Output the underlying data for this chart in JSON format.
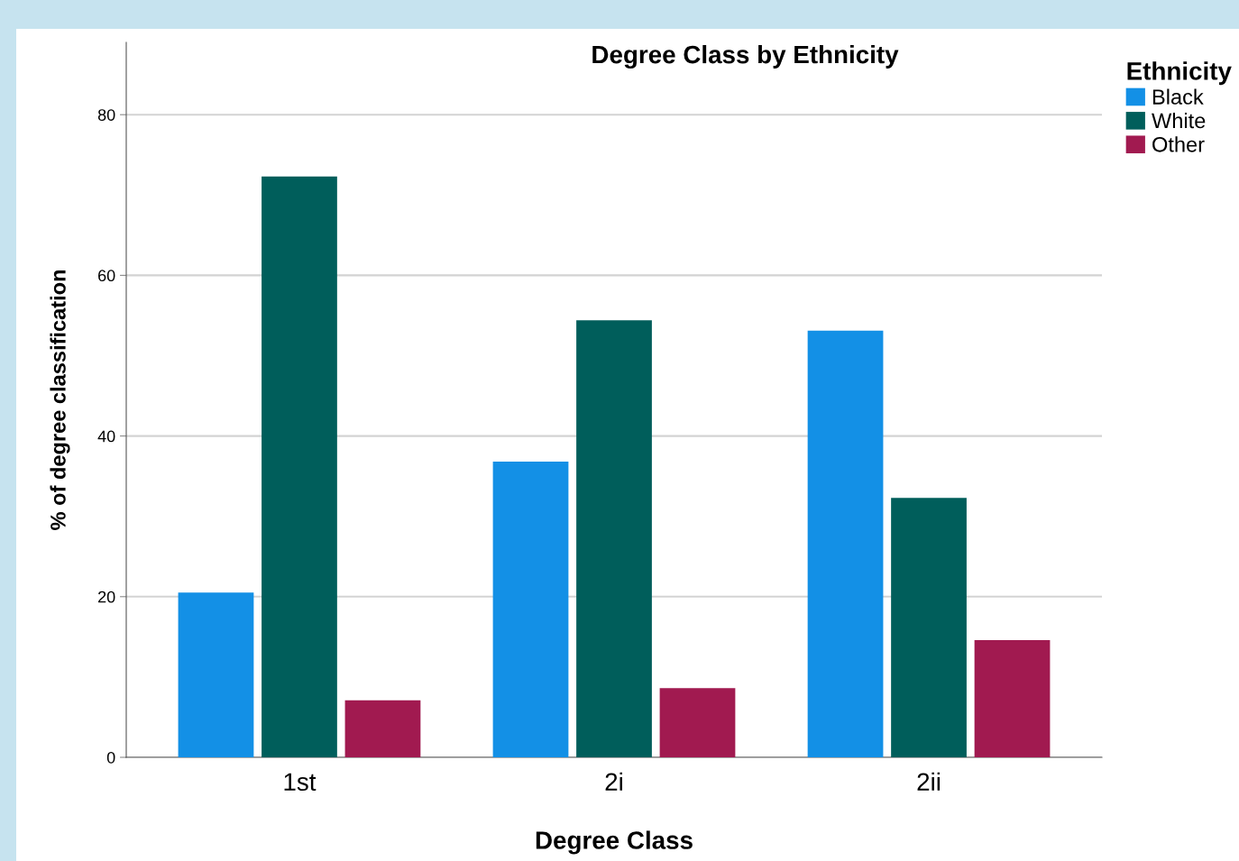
{
  "chart_data": {
    "type": "bar",
    "title": "Degree Class by Ethnicity",
    "xlabel": "Degree Class",
    "ylabel": "% of degree classification",
    "legend_title": "Ethnicity",
    "categories": [
      "1st",
      "2i",
      "2ii"
    ],
    "series": [
      {
        "name": "Black",
        "color": "#1390e6",
        "values": [
          20.5,
          36.8,
          53.1
        ]
      },
      {
        "name": "White",
        "color": "#005e5b",
        "values": [
          72.3,
          54.4,
          32.3
        ]
      },
      {
        "name": "Other",
        "color": "#a11a50",
        "values": [
          7.1,
          8.6,
          14.6
        ]
      }
    ],
    "ylim": [
      0,
      89
    ],
    "yticks": [
      0,
      20,
      40,
      60,
      80
    ],
    "grid": "y",
    "legend": "top right"
  }
}
